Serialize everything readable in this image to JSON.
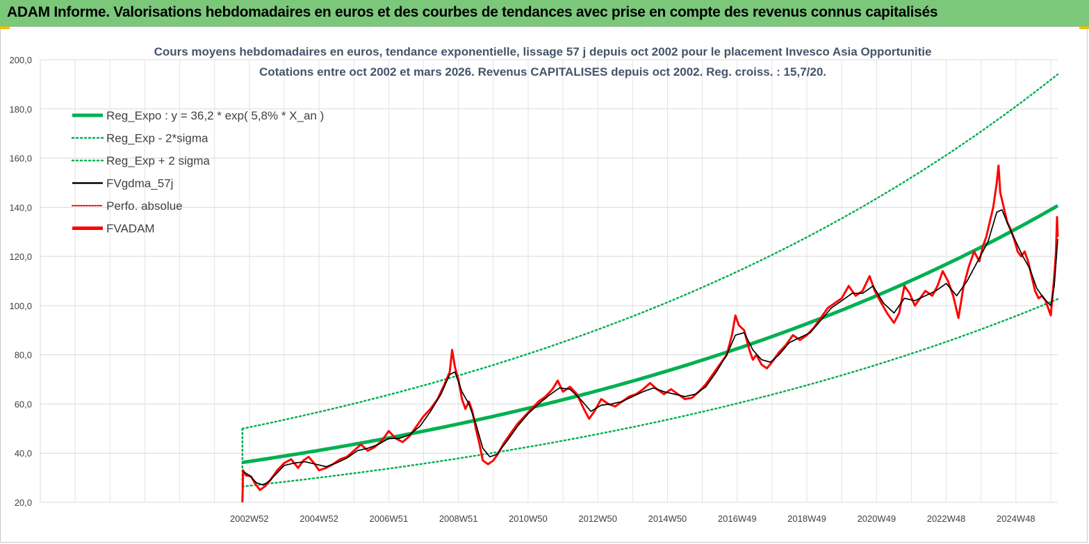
{
  "banner": {
    "title": "ADAM Informe. Valorisations hebdomadaires en euros et des courbes de tendances avec prise en compte des revenus connus capitalisés",
    "color": "#7bc87b"
  },
  "chart_data": {
    "type": "line",
    "title_lines": [
      "Cours moyens hebdomadaires en euros, tendance exponentielle, lissage 57 j depuis oct 2002 pour le placement Invesco Asia Opportunitie",
      "Cotations entre oct 2002 et mars 2026. Revenus CAPITALISES depuis oct 2002. Reg. croiss. : 15,7/20."
    ],
    "xlabel": "",
    "ylabel": "",
    "ylim": [
      20,
      200
    ],
    "y_ticks": [
      "20,0",
      "40,0",
      "60,0",
      "80,0",
      "100,0",
      "120,0",
      "140,0",
      "160,0",
      "180,0",
      "200,0"
    ],
    "x_ticks": [
      {
        "label": "2002W52",
        "year": 2003.0
      },
      {
        "label": "2004W52",
        "year": 2005.0
      },
      {
        "label": "2006W51",
        "year": 2007.0
      },
      {
        "label": "2008W51",
        "year": 2009.0
      },
      {
        "label": "2010W50",
        "year": 2011.0
      },
      {
        "label": "2012W50",
        "year": 2013.0
      },
      {
        "label": "2014W50",
        "year": 2015.0
      },
      {
        "label": "2016W49",
        "year": 2017.0
      },
      {
        "label": "2018W49",
        "year": 2019.0
      },
      {
        "label": "2020W49",
        "year": 2021.0
      },
      {
        "label": "2022W48",
        "year": 2023.0
      },
      {
        "label": "2024W48",
        "year": 2025.0
      }
    ],
    "x_range_years": [
      1997.0,
      2026.2
    ],
    "grid": true,
    "legend_position": "top-left",
    "legend": [
      {
        "label": "Reg_Expo : y = 36,2 * exp( 5,8% *  X_an )",
        "color": "#00b050",
        "style": "thick"
      },
      {
        "label": "Reg_Exp - 2*sigma",
        "color": "#00b050",
        "style": "dotted"
      },
      {
        "label": "Reg_Exp + 2 sigma",
        "color": "#00b050",
        "style": "dotted"
      },
      {
        "label": "FVgdma_57j",
        "color": "#000000",
        "style": "solid"
      },
      {
        "label": "Perfo. absolue",
        "color": "#ff0000",
        "style": "dotted"
      },
      {
        "label": "FVADAM",
        "color": "#ff0000",
        "style": "thick"
      }
    ],
    "regression": {
      "a": 36.2,
      "rate": 0.058,
      "start_year": 2002.8,
      "end_year": 2026.2,
      "lower_factor": 0.73,
      "upper_factor": 1.38
    },
    "series": [
      {
        "name": "FVADAM",
        "color": "#ff0000",
        "points": [
          [
            2002.8,
            20.0
          ],
          [
            2002.82,
            33.0
          ],
          [
            2002.9,
            31.0
          ],
          [
            2003.05,
            30.5
          ],
          [
            2003.15,
            28.0
          ],
          [
            2003.3,
            25.0
          ],
          [
            2003.45,
            26.5
          ],
          [
            2003.6,
            29.0
          ],
          [
            2003.8,
            33.0
          ],
          [
            2004.0,
            36.0
          ],
          [
            2004.2,
            37.5
          ],
          [
            2004.4,
            34.0
          ],
          [
            2004.55,
            37.0
          ],
          [
            2004.7,
            38.5
          ],
          [
            2004.85,
            36.0
          ],
          [
            2005.0,
            33.0
          ],
          [
            2005.2,
            34.0
          ],
          [
            2005.4,
            35.5
          ],
          [
            2005.6,
            37.5
          ],
          [
            2005.8,
            38.5
          ],
          [
            2006.0,
            41.0
          ],
          [
            2006.2,
            43.5
          ],
          [
            2006.4,
            41.0
          ],
          [
            2006.6,
            42.5
          ],
          [
            2006.8,
            45.0
          ],
          [
            2007.0,
            49.0
          ],
          [
            2007.2,
            46.0
          ],
          [
            2007.4,
            44.5
          ],
          [
            2007.6,
            47.0
          ],
          [
            2007.8,
            51.0
          ],
          [
            2008.0,
            55.0
          ],
          [
            2008.2,
            58.0
          ],
          [
            2008.4,
            62.0
          ],
          [
            2008.6,
            68.0
          ],
          [
            2008.75,
            73.0
          ],
          [
            2008.82,
            82.0
          ],
          [
            2008.9,
            75.0
          ],
          [
            2009.0,
            70.0
          ],
          [
            2009.1,
            62.0
          ],
          [
            2009.2,
            58.0
          ],
          [
            2009.3,
            61.0
          ],
          [
            2009.4,
            57.0
          ],
          [
            2009.5,
            50.0
          ],
          [
            2009.6,
            44.0
          ],
          [
            2009.7,
            37.0
          ],
          [
            2009.85,
            35.5
          ],
          [
            2010.0,
            37.0
          ],
          [
            2010.15,
            40.0
          ],
          [
            2010.3,
            44.0
          ],
          [
            2010.5,
            48.0
          ],
          [
            2010.7,
            52.0
          ],
          [
            2010.9,
            55.0
          ],
          [
            2011.1,
            58.0
          ],
          [
            2011.3,
            61.0
          ],
          [
            2011.5,
            63.0
          ],
          [
            2011.7,
            66.0
          ],
          [
            2011.85,
            69.5
          ],
          [
            2012.0,
            65.0
          ],
          [
            2012.2,
            67.0
          ],
          [
            2012.4,
            64.0
          ],
          [
            2012.6,
            58.0
          ],
          [
            2012.75,
            54.0
          ],
          [
            2012.9,
            57.0
          ],
          [
            2013.1,
            62.0
          ],
          [
            2013.3,
            60.0
          ],
          [
            2013.5,
            59.0
          ],
          [
            2013.7,
            61.0
          ],
          [
            2013.9,
            63.0
          ],
          [
            2014.1,
            64.0
          ],
          [
            2014.3,
            66.0
          ],
          [
            2014.5,
            68.5
          ],
          [
            2014.7,
            66.0
          ],
          [
            2014.9,
            64.0
          ],
          [
            2015.1,
            66.0
          ],
          [
            2015.3,
            64.0
          ],
          [
            2015.5,
            62.0
          ],
          [
            2015.7,
            62.5
          ],
          [
            2015.9,
            65.0
          ],
          [
            2016.1,
            68.0
          ],
          [
            2016.3,
            72.0
          ],
          [
            2016.5,
            76.0
          ],
          [
            2016.7,
            80.0
          ],
          [
            2016.85,
            88.0
          ],
          [
            2016.95,
            96.0
          ],
          [
            2017.05,
            92.0
          ],
          [
            2017.2,
            90.0
          ],
          [
            2017.35,
            82.0
          ],
          [
            2017.45,
            78.0
          ],
          [
            2017.55,
            80.0
          ],
          [
            2017.7,
            76.0
          ],
          [
            2017.85,
            74.5
          ],
          [
            2018.0,
            77.0
          ],
          [
            2018.2,
            81.0
          ],
          [
            2018.4,
            84.0
          ],
          [
            2018.6,
            88.0
          ],
          [
            2018.8,
            86.0
          ],
          [
            2019.0,
            88.0
          ],
          [
            2019.2,
            91.0
          ],
          [
            2019.4,
            95.0
          ],
          [
            2019.6,
            99.0
          ],
          [
            2019.8,
            101.0
          ],
          [
            2020.0,
            103.0
          ],
          [
            2020.2,
            108.0
          ],
          [
            2020.4,
            104.0
          ],
          [
            2020.6,
            106.0
          ],
          [
            2020.8,
            112.0
          ],
          [
            2020.95,
            106.0
          ],
          [
            2021.1,
            102.0
          ],
          [
            2021.3,
            97.0
          ],
          [
            2021.5,
            93.0
          ],
          [
            2021.65,
            97.0
          ],
          [
            2021.8,
            108.0
          ],
          [
            2021.95,
            105.0
          ],
          [
            2022.1,
            100.0
          ],
          [
            2022.25,
            103.0
          ],
          [
            2022.4,
            106.0
          ],
          [
            2022.6,
            104.0
          ],
          [
            2022.75,
            108.0
          ],
          [
            2022.9,
            114.0
          ],
          [
            2023.05,
            110.0
          ],
          [
            2023.2,
            104.0
          ],
          [
            2023.35,
            95.0
          ],
          [
            2023.5,
            108.0
          ],
          [
            2023.65,
            116.0
          ],
          [
            2023.8,
            122.0
          ],
          [
            2023.95,
            118.0
          ],
          [
            2024.05,
            124.0
          ],
          [
            2024.15,
            128.0
          ],
          [
            2024.25,
            134.0
          ],
          [
            2024.35,
            140.0
          ],
          [
            2024.45,
            150.0
          ],
          [
            2024.5,
            157.0
          ],
          [
            2024.55,
            146.0
          ],
          [
            2024.65,
            140.0
          ],
          [
            2024.75,
            134.0
          ],
          [
            2024.85,
            131.0
          ],
          [
            2024.95,
            127.0
          ],
          [
            2025.05,
            122.0
          ],
          [
            2025.15,
            120.0
          ],
          [
            2025.25,
            122.0
          ],
          [
            2025.35,
            118.0
          ],
          [
            2025.45,
            112.0
          ],
          [
            2025.55,
            106.0
          ],
          [
            2025.65,
            103.0
          ],
          [
            2025.75,
            104.0
          ],
          [
            2025.85,
            102.0
          ],
          [
            2025.95,
            98.0
          ],
          [
            2026.0,
            96.0
          ],
          [
            2026.05,
            104.0
          ],
          [
            2026.1,
            112.0
          ],
          [
            2026.15,
            122.0
          ],
          [
            2026.18,
            136.0
          ],
          [
            2026.2,
            128.0
          ]
        ]
      },
      {
        "name": "FVgdma_57j",
        "color": "#000000",
        "points": [
          [
            2002.82,
            32.5
          ],
          [
            2003.0,
            31.0
          ],
          [
            2003.2,
            28.0
          ],
          [
            2003.4,
            27.0
          ],
          [
            2003.6,
            29.0
          ],
          [
            2003.8,
            32.0
          ],
          [
            2004.0,
            35.0
          ],
          [
            2004.3,
            36.0
          ],
          [
            2004.6,
            36.5
          ],
          [
            2004.9,
            35.5
          ],
          [
            2005.2,
            34.5
          ],
          [
            2005.5,
            36.0
          ],
          [
            2005.8,
            38.0
          ],
          [
            2006.1,
            41.0
          ],
          [
            2006.4,
            42.0
          ],
          [
            2006.7,
            43.5
          ],
          [
            2007.0,
            46.0
          ],
          [
            2007.3,
            46.0
          ],
          [
            2007.6,
            47.5
          ],
          [
            2007.9,
            51.0
          ],
          [
            2008.2,
            57.0
          ],
          [
            2008.5,
            64.0
          ],
          [
            2008.75,
            72.0
          ],
          [
            2008.9,
            73.0
          ],
          [
            2009.1,
            65.0
          ],
          [
            2009.3,
            60.0
          ],
          [
            2009.5,
            52.0
          ],
          [
            2009.7,
            42.0
          ],
          [
            2009.9,
            38.5
          ],
          [
            2010.1,
            39.5
          ],
          [
            2010.4,
            45.0
          ],
          [
            2010.7,
            51.0
          ],
          [
            2011.0,
            56.0
          ],
          [
            2011.3,
            60.0
          ],
          [
            2011.6,
            63.5
          ],
          [
            2011.9,
            66.5
          ],
          [
            2012.2,
            66.0
          ],
          [
            2012.5,
            62.0
          ],
          [
            2012.8,
            57.0
          ],
          [
            2013.1,
            59.5
          ],
          [
            2013.4,
            60.0
          ],
          [
            2013.7,
            61.0
          ],
          [
            2014.0,
            63.0
          ],
          [
            2014.3,
            65.0
          ],
          [
            2014.6,
            66.5
          ],
          [
            2014.9,
            65.0
          ],
          [
            2015.2,
            64.0
          ],
          [
            2015.5,
            63.0
          ],
          [
            2015.8,
            64.0
          ],
          [
            2016.1,
            67.0
          ],
          [
            2016.4,
            73.0
          ],
          [
            2016.7,
            80.0
          ],
          [
            2016.95,
            88.0
          ],
          [
            2017.2,
            89.0
          ],
          [
            2017.45,
            82.0
          ],
          [
            2017.7,
            78.0
          ],
          [
            2017.95,
            77.0
          ],
          [
            2018.2,
            80.0
          ],
          [
            2018.5,
            85.0
          ],
          [
            2018.8,
            87.0
          ],
          [
            2019.1,
            89.0
          ],
          [
            2019.4,
            94.0
          ],
          [
            2019.7,
            99.0
          ],
          [
            2020.0,
            102.0
          ],
          [
            2020.3,
            105.0
          ],
          [
            2020.6,
            105.0
          ],
          [
            2020.9,
            108.0
          ],
          [
            2021.2,
            101.0
          ],
          [
            2021.5,
            97.0
          ],
          [
            2021.8,
            103.0
          ],
          [
            2022.1,
            102.0
          ],
          [
            2022.4,
            104.0
          ],
          [
            2022.7,
            106.0
          ],
          [
            2023.0,
            109.0
          ],
          [
            2023.3,
            104.0
          ],
          [
            2023.6,
            110.0
          ],
          [
            2023.9,
            118.0
          ],
          [
            2024.2,
            126.0
          ],
          [
            2024.45,
            138.0
          ],
          [
            2024.6,
            139.0
          ],
          [
            2024.8,
            132.0
          ],
          [
            2025.0,
            126.0
          ],
          [
            2025.2,
            120.0
          ],
          [
            2025.4,
            115.0
          ],
          [
            2025.6,
            107.0
          ],
          [
            2025.8,
            103.0
          ],
          [
            2026.0,
            100.0
          ],
          [
            2026.1,
            108.0
          ],
          [
            2026.2,
            127.0
          ]
        ]
      }
    ]
  }
}
